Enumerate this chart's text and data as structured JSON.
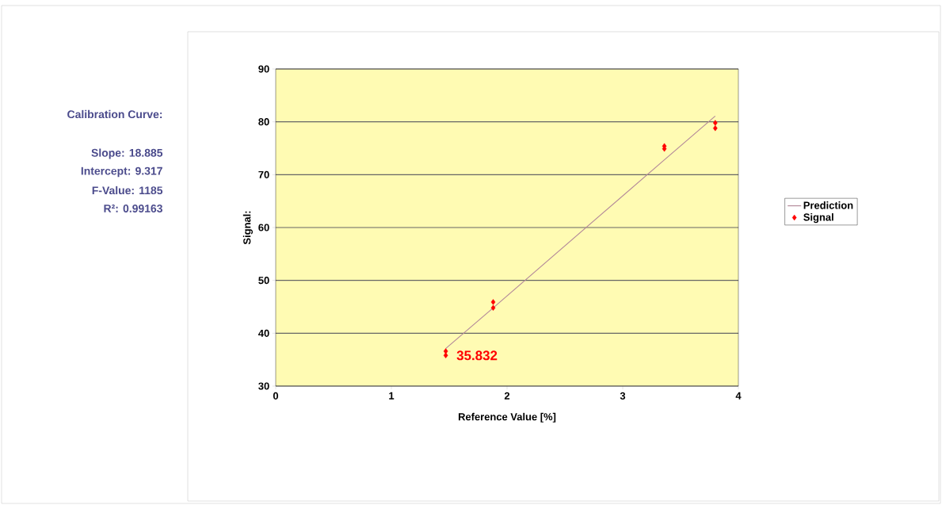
{
  "chart_data": {
    "type": "scatter",
    "title": "Calibration Curve:",
    "annotations": [
      "Slope: 18.885",
      "Intercept: 9.317",
      "F-Value: 1185",
      "R²: 0.99163",
      {
        "text": "35.832",
        "x": 1.47,
        "y": 35.8
      }
    ],
    "xlabel": "Reference Value [%]",
    "ylabel": "Signal:",
    "xlim": [
      0,
      4
    ],
    "ylim": [
      30,
      90
    ],
    "xticks": [
      0,
      1,
      2,
      3,
      4
    ],
    "yticks": [
      30,
      40,
      50,
      60,
      70,
      80,
      90
    ],
    "grid": "y",
    "legend": "right",
    "series": [
      {
        "name": "Prediction",
        "type": "line",
        "marker": "none",
        "color": "#b48a9a",
        "x": [
          1.47,
          1.88,
          3.36,
          3.8
        ],
        "values": [
          37.1,
          44.8,
          72.8,
          81.1
        ]
      },
      {
        "name": "Signal",
        "marker": "diamond",
        "color": "#ff0000",
        "x": [
          1.47,
          1.47,
          1.88,
          1.88,
          3.36,
          3.36,
          3.8,
          3.8
        ],
        "values": [
          36.6,
          35.8,
          45.9,
          44.8,
          75.4,
          74.9,
          79.8,
          78.8
        ]
      }
    ]
  }
}
